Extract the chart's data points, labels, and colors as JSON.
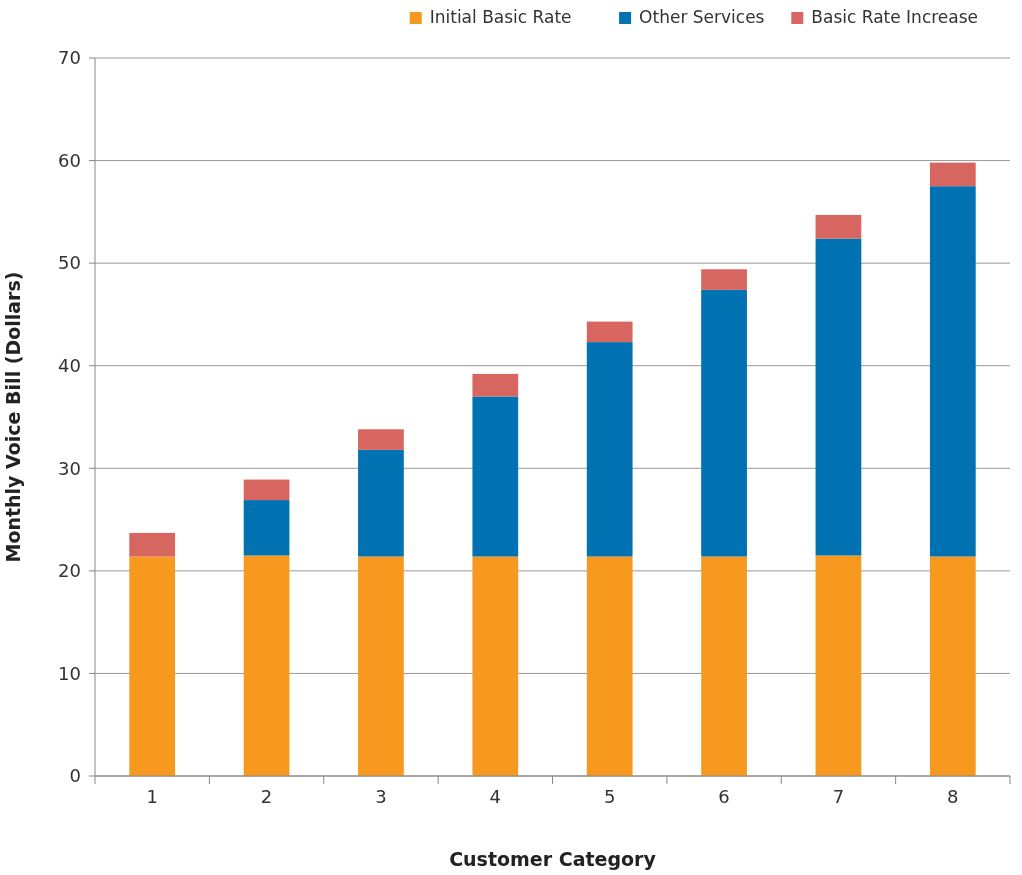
{
  "chart_data": {
    "type": "bar",
    "stacked": true,
    "xlabel": "Customer Category",
    "ylabel": "Monthly Voice Bill (Dollars)",
    "categories": [
      "1",
      "2",
      "3",
      "4",
      "5",
      "6",
      "7",
      "8"
    ],
    "series": [
      {
        "name": "Initial Basic Rate",
        "color": "#f7981f",
        "values": [
          21.4,
          21.5,
          21.4,
          21.4,
          21.4,
          21.4,
          21.5,
          21.4
        ]
      },
      {
        "name": "Other Services",
        "color": "#0072b1",
        "values": [
          0,
          5.4,
          10.4,
          15.6,
          20.9,
          26.0,
          30.9,
          36.1
        ]
      },
      {
        "name": "Basic Rate Increase",
        "color": "#d6665f",
        "values": [
          2.3,
          2.0,
          2.0,
          2.2,
          2.0,
          2.0,
          2.3,
          2.3
        ]
      }
    ],
    "ylim": [
      0,
      70
    ],
    "yticks": [
      0,
      10,
      20,
      30,
      40,
      50,
      60,
      70
    ],
    "grid": "y",
    "legend": "top right"
  }
}
